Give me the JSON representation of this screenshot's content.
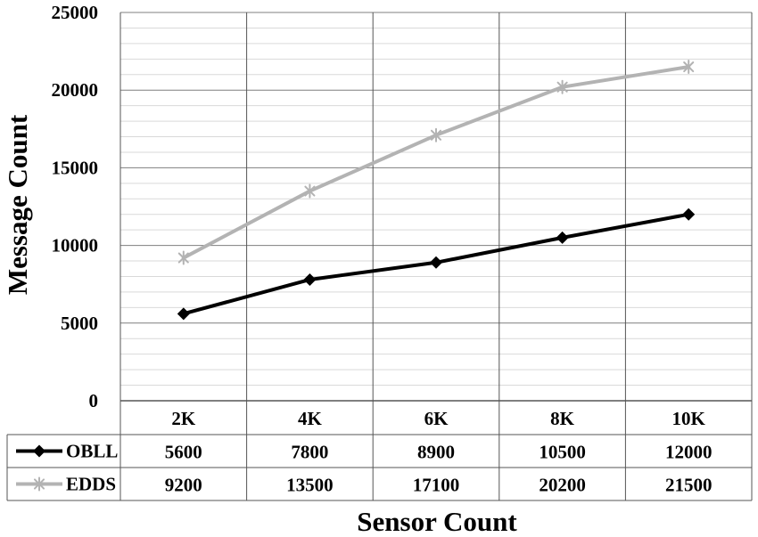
{
  "chart_data": {
    "type": "line",
    "xlabel": "Sensor Count",
    "ylabel": "Message Count",
    "categories": [
      "2K",
      "4K",
      "6K",
      "8K",
      "10K"
    ],
    "ylim": [
      0,
      25000
    ],
    "yticks": [
      0,
      5000,
      10000,
      15000,
      20000,
      25000
    ],
    "ytick_labels": [
      "0",
      "5000",
      "10000",
      "15000",
      "20000",
      "25000"
    ],
    "grid": "on (major and minor horizontal, vertical category lines)",
    "legend": "data table below plot",
    "series": [
      {
        "name": "OBLL",
        "values": [
          5600,
          7800,
          8900,
          10500,
          12000
        ],
        "value_labels": [
          "5600",
          "7800",
          "8900",
          "10500",
          "12000"
        ],
        "color": "#000000",
        "marker": "diamond"
      },
      {
        "name": "EDDS",
        "values": [
          9200,
          13500,
          17100,
          20200,
          21500
        ],
        "value_labels": [
          "9200",
          "13500",
          "17100",
          "20200",
          "21500"
        ],
        "color": "#b3b3b3",
        "marker": "asterisk"
      }
    ]
  }
}
